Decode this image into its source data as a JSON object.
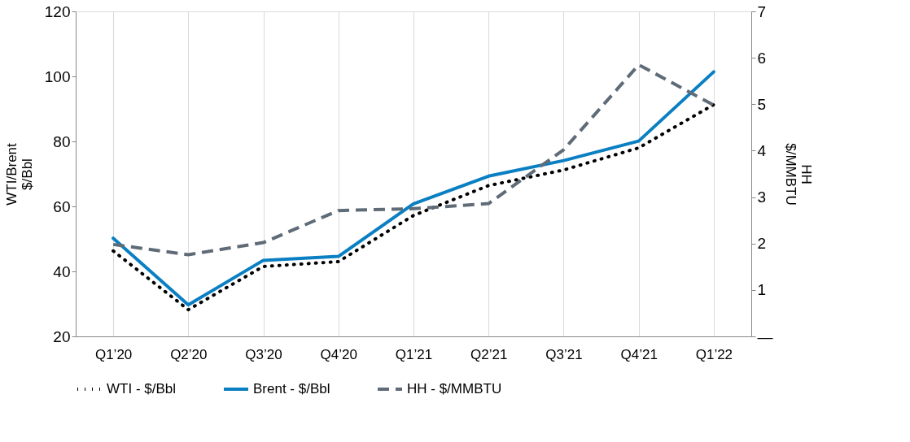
{
  "chart_data": {
    "type": "line",
    "categories": [
      "Q1’20",
      "Q2’20",
      "Q3’20",
      "Q4’20",
      "Q1’21",
      "Q2’21",
      "Q3’21",
      "Q4’21",
      "Q1’22"
    ],
    "ylabel": "WTI/Brent\n$/Bbl",
    "y2label": "HH\n$/MMBTU",
    "ylim": [
      20,
      120
    ],
    "yticks": [
      20,
      40,
      60,
      80,
      100,
      120
    ],
    "y2lim": [
      0,
      7
    ],
    "y2ticks": [
      {
        "value": 0,
        "label": "—"
      },
      1,
      2,
      3,
      4,
      5,
      6,
      7
    ],
    "grid": "x",
    "legend": "bottom",
    "series": [
      {
        "name": "WTI - $/Bbl",
        "color": "#000000",
        "line_style": "dotted",
        "values": [
          46.3,
          28.2,
          41.5,
          43.0,
          57.2,
          66.4,
          71.2,
          78.0,
          91.3
        ]
      },
      {
        "name": "Brent - $/Bbl",
        "color": "#0a7fc2",
        "line_style": "solid",
        "values": [
          50.2,
          29.7,
          43.4,
          44.6,
          60.8,
          69.3,
          74.1,
          80.1,
          101.4
        ]
      },
      {
        "name": "HH - $/MMBTU",
        "color": "#5f6b77",
        "line_style": "dashed",
        "axis": "y2",
        "values": [
          1.98,
          1.76,
          2.02,
          2.71,
          2.75,
          2.86,
          4.02,
          5.85,
          4.98
        ]
      }
    ]
  }
}
